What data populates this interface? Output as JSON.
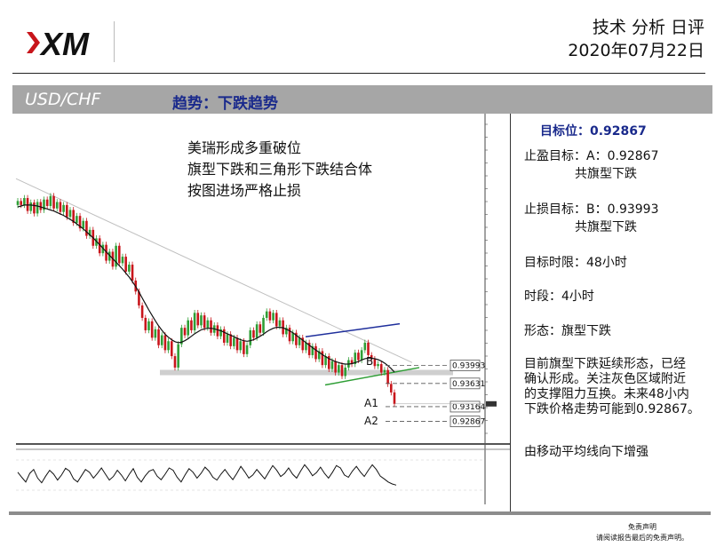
{
  "header": {
    "title": "技术 分析 日评",
    "date": "2020年07月22日"
  },
  "band": {
    "pair": "USD/CHF",
    "trend": "趋势：下跌趋势"
  },
  "chart_data": {
    "type": "candlestick",
    "annotation_lines": [
      "美瑞形成多重破位",
      "旗型下跌和三角形下跌结合体",
      "按图进场严格止损"
    ],
    "point_labels": [
      "B",
      "A1",
      "A2"
    ],
    "price_levels": [
      {
        "label": "B",
        "value": "0.93993",
        "price": 0.93993
      },
      {
        "label": "",
        "value": "0.93631",
        "price": 0.93631
      },
      {
        "label": "A1",
        "value": "0.93164",
        "price": 0.93164
      },
      {
        "label": "A2",
        "value": "0.92867",
        "price": 0.92867
      }
    ],
    "ylim": [
      0.9252,
      0.9895
    ],
    "close_series": [
      0.973,
      0.9722,
      0.9736,
      0.971,
      0.9727,
      0.9705,
      0.9728,
      0.9712,
      0.9733,
      0.972,
      0.974,
      0.9715,
      0.9728,
      0.9708,
      0.9722,
      0.9698,
      0.9712,
      0.9686,
      0.97,
      0.9675,
      0.969,
      0.966,
      0.9672,
      0.964,
      0.9655,
      0.9625,
      0.9642,
      0.961,
      0.9628,
      0.9598,
      0.964,
      0.9605,
      0.9618,
      0.9588,
      0.9602,
      0.957,
      0.9548,
      0.952,
      0.9495,
      0.947,
      0.9488,
      0.9455,
      0.9472,
      0.944,
      0.946,
      0.943,
      0.9448,
      0.9418,
      0.9395,
      0.9442,
      0.9475,
      0.946,
      0.949,
      0.947,
      0.9505,
      0.948,
      0.95,
      0.9475,
      0.949,
      0.9465,
      0.948,
      0.9458,
      0.9472,
      0.9445,
      0.9462,
      0.9438,
      0.9455,
      0.943,
      0.9448,
      0.9422,
      0.944,
      0.947,
      0.9455,
      0.9482,
      0.9465,
      0.9495,
      0.9508,
      0.949,
      0.9505,
      0.9478,
      0.949,
      0.9462,
      0.9475,
      0.9448,
      0.9465,
      0.944,
      0.9455,
      0.943,
      0.9445,
      0.942,
      0.9438,
      0.9412,
      0.9428,
      0.94,
      0.9418,
      0.9392,
      0.9408,
      0.9385,
      0.94,
      0.9378,
      0.9395,
      0.941,
      0.9402,
      0.9425,
      0.941,
      0.943,
      0.9445,
      0.942,
      0.9412,
      0.9398,
      0.9402,
      0.9385,
      0.939,
      0.9362,
      0.9345,
      0.9322
    ],
    "ma_series": [
      0.9718,
      0.972,
      0.9722,
      0.9722,
      0.9722,
      0.9721,
      0.972,
      0.9718,
      0.9716,
      0.9714,
      0.9712,
      0.971,
      0.9707,
      0.9704,
      0.9701,
      0.9697,
      0.9693,
      0.9689,
      0.9684,
      0.9679,
      0.9674,
      0.9668,
      0.9662,
      0.9656,
      0.9649,
      0.9642,
      0.9635,
      0.9628,
      0.9621,
      0.9614,
      0.9607,
      0.96,
      0.9593,
      0.9585,
      0.9577,
      0.9568,
      0.9558,
      0.9547,
      0.9535,
      0.9523,
      0.9511,
      0.95,
      0.9489,
      0.9479,
      0.947,
      0.9462,
      0.9456,
      0.9451,
      0.9447,
      0.9445,
      0.9446,
      0.9449,
      0.9453,
      0.9458,
      0.9463,
      0.9467,
      0.9471,
      0.9473,
      0.9474,
      0.9474,
      0.9473,
      0.9471,
      0.9469,
      0.9466,
      0.9463,
      0.946,
      0.9457,
      0.9454,
      0.9451,
      0.9449,
      0.9448,
      0.9449,
      0.9451,
      0.9454,
      0.9458,
      0.9462,
      0.9467,
      0.9471,
      0.9474,
      0.9476,
      0.9476,
      0.9475,
      0.9472,
      0.9469,
      0.9465,
      0.946,
      0.9455,
      0.945,
      0.9445,
      0.944,
      0.9435,
      0.943,
      0.9426,
      0.9421,
      0.9417,
      0.9413,
      0.941,
      0.9407,
      0.9405,
      0.9403,
      0.9402,
      0.9402,
      0.9403,
      0.9405,
      0.9407,
      0.941,
      0.9413,
      0.9414,
      0.9414,
      0.9413,
      0.9411,
      0.9408,
      0.9404,
      0.9399,
      0.9393,
      0.9386
    ],
    "osc_series": [
      55,
      42,
      30,
      52,
      62,
      40,
      28,
      45,
      60,
      50,
      35,
      48,
      65,
      58,
      38,
      30,
      46,
      62,
      55,
      40,
      52,
      66,
      50,
      35,
      44,
      60,
      48,
      33,
      50,
      64,
      42,
      30,
      46,
      58,
      62,
      45,
      36,
      50,
      66,
      60,
      42,
      30,
      48,
      64,
      55,
      40,
      52,
      68,
      58,
      42,
      35,
      50,
      62,
      48,
      36,
      52,
      70,
      56,
      40,
      48,
      62,
      50,
      38,
      55,
      72,
      60,
      44,
      52,
      66,
      50,
      40,
      58,
      74,
      62,
      46,
      54,
      68,
      52,
      40,
      55,
      72,
      66,
      48,
      42,
      58,
      70,
      56,
      44,
      60,
      74,
      62,
      45,
      38,
      30,
      25,
      22
    ]
  },
  "right_panel": {
    "target": "目标位：0.92867",
    "tp_line1": "止盈目标：A：0.92867",
    "tp_line2": "共旗型下跌",
    "sl_line1": "止损目标：B：0.93993",
    "sl_line2": "共旗型下跌",
    "time_limit": "目标时限：48小时",
    "timeframe": "时段：4小时",
    "pattern": "形态：旗型下跌",
    "desc_lines": [
      "目前旗型下跌延续形态，已经",
      "确认形成。关注灰色区域附近",
      "的支撑阻力互换。未来48小内",
      "下跌价格走势可能到0.92867。"
    ],
    "ma_note": "由移动平均线向下增强"
  },
  "disclaimer": {
    "line1": "免责声明",
    "line2": "请阅读报告最后的免责声明。"
  },
  "colors": {
    "up": "#2e9e35",
    "down": "#c8151b",
    "ma": "#111111",
    "trendline": "#bfbfbf",
    "flag_top": "#1f2f9c",
    "flag_bottom": "#2e9e35",
    "support_zone": "#cfcfcf",
    "target_text": "#1a2a8c"
  }
}
